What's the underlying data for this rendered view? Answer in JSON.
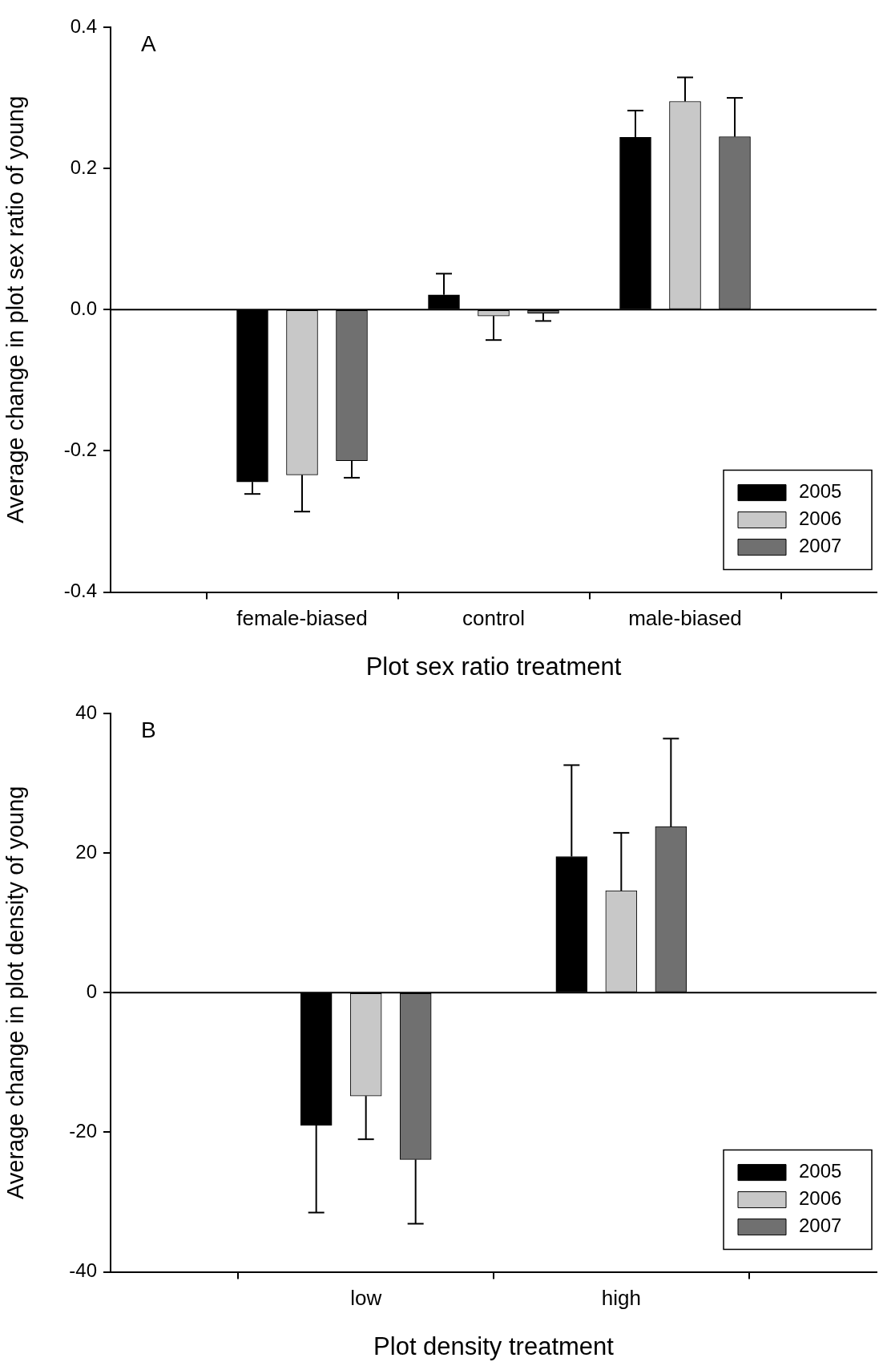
{
  "chart_data": [
    {
      "type": "bar",
      "annotations": [
        "A"
      ],
      "xlabel": "Plot sex ratio treatment",
      "ylabel": "Average change in plot sex ratio of young",
      "categories": [
        "female-biased",
        "control",
        "male-biased"
      ],
      "series": [
        {
          "name": "2005",
          "color": "#000000",
          "values": [
            -0.244,
            0.021,
            0.244
          ],
          "errors": [
            [
              -0.261,
              -0.244
            ],
            [
              0.021,
              0.051
            ],
            [
              0.244,
              0.282
            ]
          ]
        },
        {
          "name": "2006",
          "color": "#c8c8c8",
          "values": [
            -0.234,
            -0.009,
            0.295
          ],
          "errors": [
            [
              -0.286,
              -0.234
            ],
            [
              -0.043,
              -0.009
            ],
            [
              0.295,
              0.329
            ]
          ]
        },
        {
          "name": "2007",
          "color": "#707070",
          "values": [
            -0.214,
            -0.005,
            0.245
          ],
          "errors": [
            [
              -0.238,
              -0.214
            ],
            [
              -0.016,
              -0.005
            ],
            [
              0.245,
              0.3
            ]
          ]
        }
      ],
      "ylim": [
        -0.4,
        0.4
      ],
      "yticks": [
        -0.4,
        -0.2,
        {
          "value": 0,
          "label": "0.0"
        },
        0.2,
        0.4
      ],
      "ref_lines": [
        {
          "axis": "y",
          "value": 0
        }
      ],
      "legend": "bottom right"
    },
    {
      "type": "bar",
      "annotations": [
        "B"
      ],
      "xlabel": "Plot density treatment",
      "ylabel": "Average change in plot density of young",
      "categories": [
        "low",
        "high"
      ],
      "series": [
        {
          "name": "2005",
          "color": "#000000",
          "values": [
            -19.0,
            19.5
          ],
          "errors": [
            [
              -31.5,
              -19.0
            ],
            [
              19.5,
              32.6
            ]
          ]
        },
        {
          "name": "2006",
          "color": "#c8c8c8",
          "values": [
            -14.8,
            14.6
          ],
          "errors": [
            [
              -21.0,
              -14.8
            ],
            [
              14.6,
              22.9
            ]
          ]
        },
        {
          "name": "2007",
          "color": "#707070",
          "values": [
            -23.9,
            23.8
          ],
          "errors": [
            [
              -33.1,
              -23.9
            ],
            [
              23.8,
              36.4
            ]
          ]
        }
      ],
      "ylim": [
        -40,
        40
      ],
      "yticks": [
        -40,
        -20,
        0,
        20,
        40
      ],
      "ref_lines": [
        {
          "axis": "y",
          "value": 0
        }
      ],
      "legend": "bottom right"
    }
  ]
}
